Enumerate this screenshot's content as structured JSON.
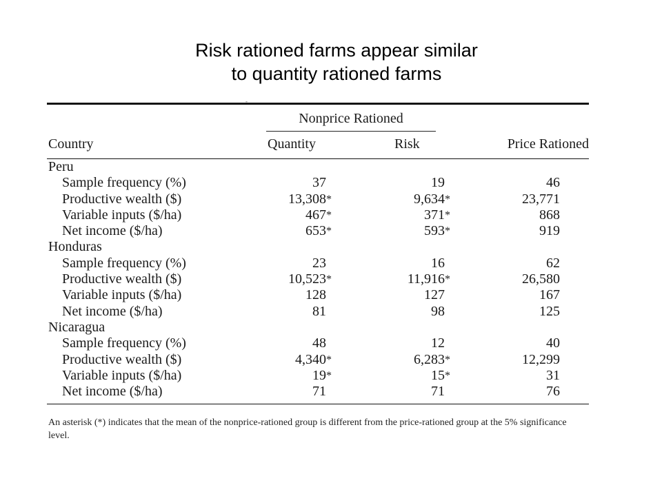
{
  "slide": {
    "title_line1": "Risk rationed farms appear similar",
    "title_line2": "to quantity rationed farms"
  },
  "table": {
    "tick_mark": "-",
    "group_header": "Nonprice Rationed",
    "headers": {
      "country": "Country",
      "quantity": "Quantity",
      "risk": "Risk",
      "price": "Price Rationed"
    },
    "rows": [
      {
        "kind": "country",
        "label": "Peru"
      },
      {
        "kind": "metric",
        "label": "Sample frequency (%)",
        "quantity": "37",
        "quantity_ast": "",
        "risk": "19",
        "risk_ast": "",
        "price": "46"
      },
      {
        "kind": "metric",
        "label": "Productive wealth ($)",
        "quantity": "13,308",
        "quantity_ast": "*",
        "risk": "9,634",
        "risk_ast": "*",
        "price": "23,771"
      },
      {
        "kind": "metric",
        "label": "Variable inputs ($/ha)",
        "quantity": "467",
        "quantity_ast": "*",
        "risk": "371",
        "risk_ast": "*",
        "price": "868"
      },
      {
        "kind": "metric",
        "label": "Net income ($/ha)",
        "quantity": "653",
        "quantity_ast": "*",
        "risk": "593",
        "risk_ast": "*",
        "price": "919"
      },
      {
        "kind": "country",
        "label": "Honduras"
      },
      {
        "kind": "metric",
        "label": "Sample frequency (%)",
        "quantity": "23",
        "quantity_ast": "",
        "risk": "16",
        "risk_ast": "",
        "price": "62"
      },
      {
        "kind": "metric",
        "label": "Productive wealth ($)",
        "quantity": "10,523",
        "quantity_ast": "*",
        "risk": "11,916",
        "risk_ast": "*",
        "price": "26,580"
      },
      {
        "kind": "metric",
        "label": "Variable inputs ($/ha)",
        "quantity": "128",
        "quantity_ast": "",
        "risk": "127",
        "risk_ast": "",
        "price": "167"
      },
      {
        "kind": "metric",
        "label": "Net income ($/ha)",
        "quantity": "81",
        "quantity_ast": "",
        "risk": "98",
        "risk_ast": "",
        "price": "125"
      },
      {
        "kind": "country",
        "label": "Nicaragua"
      },
      {
        "kind": "metric",
        "label": "Sample frequency (%)",
        "quantity": "48",
        "quantity_ast": "",
        "risk": "12",
        "risk_ast": "",
        "price": "40"
      },
      {
        "kind": "metric",
        "label": "Productive wealth ($)",
        "quantity": "4,340",
        "quantity_ast": "*",
        "risk": "6,283",
        "risk_ast": "*",
        "price": "12,299"
      },
      {
        "kind": "metric",
        "label": "Variable inputs ($/ha)",
        "quantity": "19",
        "quantity_ast": "*",
        "risk": "15",
        "risk_ast": "*",
        "price": "31"
      },
      {
        "kind": "metric",
        "label": "Net income ($/ha)",
        "quantity": "71",
        "quantity_ast": "",
        "risk": "71",
        "risk_ast": "",
        "price": "76"
      }
    ],
    "footnote": "An asterisk (*) indicates that the mean of the nonprice-rationed group is different from the price-rationed group at the 5% significance level."
  }
}
